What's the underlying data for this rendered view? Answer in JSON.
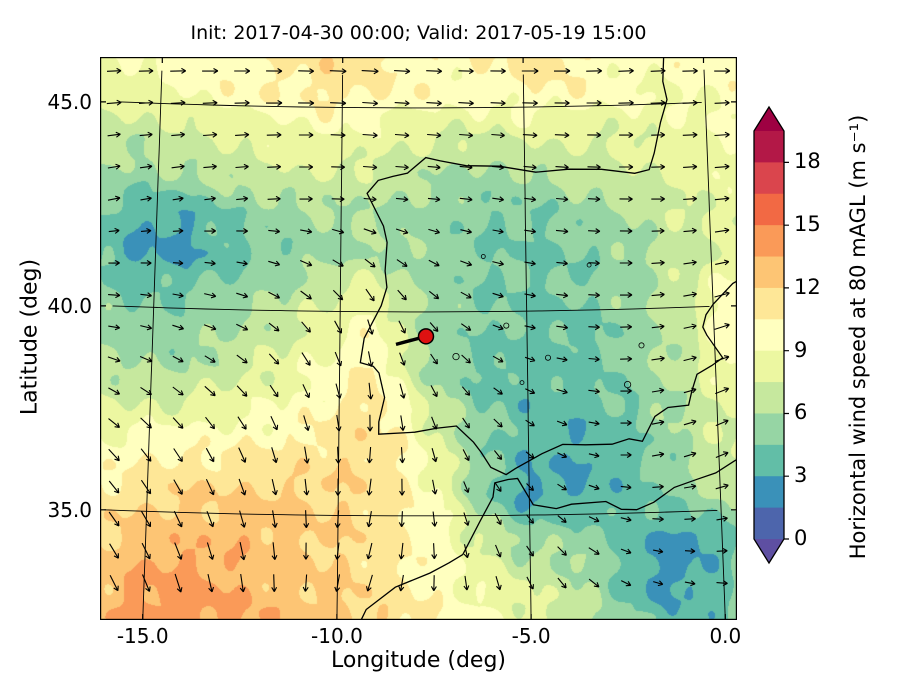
{
  "figure": {
    "title": "Init: 2017-04-30 00:00; Valid: 2017-05-19 15:00",
    "xlabel": "Longitude (deg)",
    "ylabel": "Latitude (deg)"
  },
  "axes": {
    "x_ticks": [
      {
        "v": -15,
        "label": "-15.0"
      },
      {
        "v": -10,
        "label": "-10.0"
      },
      {
        "v": -5,
        "label": "-5.0"
      },
      {
        "v": 0,
        "label": "0.0"
      }
    ],
    "y_ticks": [
      {
        "v": 45,
        "label": "45.0"
      },
      {
        "v": 40,
        "label": "40.0"
      },
      {
        "v": 35,
        "label": "35.0"
      }
    ]
  },
  "colorbar": {
    "label": "Horizontal wind speed at 80 mAGL (m s⁻¹)",
    "ticks": [
      "0",
      "3",
      "6",
      "9",
      "12",
      "15",
      "18"
    ],
    "tick_values": [
      0,
      3,
      6,
      9,
      12,
      15,
      18
    ],
    "vmin": 0,
    "vmax": 19.5,
    "extend": "both",
    "colormap": "Spectral_r",
    "colors": [
      "#5e4fa2",
      "#3288bd",
      "#66c2a5",
      "#abdda4",
      "#e6f598",
      "#ffffbf",
      "#fee08b",
      "#fdae61",
      "#f46d43",
      "#d53e4f",
      "#9e0142"
    ]
  },
  "chart_data": {
    "type": "heatmap",
    "title": "Init: 2017-04-30 00:00; Valid: 2017-05-19 15:00",
    "xlabel": "Longitude (deg)",
    "ylabel": "Latitude (deg)",
    "x_range": [
      -16.1,
      0.3
    ],
    "y_range": [
      32.3,
      46.1
    ],
    "level_step": 1.5,
    "gridline_meridians": [
      -15,
      -10,
      -5,
      0
    ],
    "gridline_parallels": [
      35,
      40,
      45
    ],
    "speed_grid_lons": [
      -16.2,
      -15.2,
      -14.2,
      -13.2,
      -12.2,
      -11.1,
      -10.1,
      -9.1,
      -8.1,
      -7.1,
      -6.0,
      -5.0,
      -4.0,
      -3.0,
      -2.0,
      -0.9,
      0.1,
      0.9
    ],
    "speed_grid_lats": [
      46.2,
      45.2,
      44.2,
      43.3,
      42.3,
      41.3,
      40.3,
      39.3,
      38.4,
      37.4,
      36.4,
      35.4,
      34.4,
      33.4,
      32.4
    ],
    "speed_grid": [
      [
        8.5,
        9.0,
        9.5,
        10.5,
        10.5,
        11.0,
        11.5,
        11.0,
        10.5,
        10.0,
        10.5,
        11.5,
        11.0,
        10.0,
        9.5,
        10.0,
        10.5,
        10.0
      ],
      [
        8.0,
        8.5,
        9.0,
        9.5,
        10.0,
        10.5,
        11.0,
        10.5,
        10.0,
        9.5,
        9.5,
        10.0,
        10.0,
        9.5,
        9.0,
        9.0,
        9.5,
        9.5
      ],
      [
        6.5,
        6.5,
        7.0,
        7.5,
        8.0,
        8.5,
        9.0,
        8.5,
        8.0,
        7.5,
        7.5,
        8.0,
        8.0,
        7.5,
        8.0,
        8.5,
        9.0,
        9.0
      ],
      [
        6.0,
        5.5,
        6.0,
        6.5,
        7.0,
        7.5,
        7.5,
        7.0,
        6.5,
        6.0,
        5.5,
        6.0,
        6.5,
        7.0,
        7.5,
        8.0,
        8.5,
        8.5
      ],
      [
        4.5,
        3.5,
        3.0,
        4.0,
        5.0,
        5.5,
        6.0,
        6.0,
        5.5,
        5.0,
        4.5,
        4.5,
        5.0,
        5.5,
        6.5,
        7.5,
        8.0,
        8.0
      ],
      [
        4.0,
        2.8,
        2.5,
        3.5,
        4.5,
        5.0,
        5.5,
        6.0,
        5.5,
        5.0,
        4.5,
        4.5,
        4.5,
        5.0,
        6.0,
        7.0,
        7.5,
        7.5
      ],
      [
        5.0,
        4.5,
        4.5,
        5.0,
        5.5,
        6.5,
        7.5,
        8.5,
        6.0,
        5.0,
        4.5,
        4.5,
        4.5,
        5.0,
        6.0,
        7.5,
        10.0,
        10.5
      ],
      [
        5.5,
        5.0,
        5.0,
        5.5,
        6.5,
        7.5,
        8.5,
        10.0,
        6.5,
        5.0,
        4.5,
        4.0,
        4.0,
        4.5,
        5.5,
        7.0,
        10.5,
        11.0
      ],
      [
        6.5,
        6.0,
        6.0,
        6.5,
        7.5,
        8.5,
        9.5,
        11.0,
        7.0,
        5.0,
        4.0,
        3.5,
        4.0,
        4.5,
        5.5,
        7.0,
        9.0,
        9.5
      ],
      [
        8.0,
        8.0,
        8.0,
        8.5,
        9.0,
        9.5,
        10.5,
        11.5,
        9.0,
        6.0,
        4.5,
        3.5,
        3.5,
        4.0,
        5.0,
        6.5,
        8.0,
        8.5
      ],
      [
        9.5,
        10.0,
        10.5,
        10.5,
        10.5,
        11.0,
        11.5,
        11.5,
        10.0,
        7.0,
        4.5,
        3.5,
        3.0,
        3.5,
        4.5,
        6.0,
        7.5,
        8.0
      ],
      [
        11.0,
        11.5,
        12.0,
        12.0,
        12.0,
        12.0,
        12.0,
        11.5,
        10.5,
        8.0,
        4.0,
        2.5,
        3.0,
        3.5,
        4.5,
        5.5,
        7.0,
        7.5
      ],
      [
        12.0,
        12.5,
        13.0,
        13.0,
        13.0,
        12.5,
        12.0,
        11.5,
        10.5,
        9.0,
        6.5,
        5.0,
        5.5,
        4.5,
        3.0,
        2.5,
        4.0,
        5.0
      ],
      [
        12.5,
        13.5,
        14.0,
        13.5,
        13.0,
        12.5,
        12.0,
        11.5,
        10.5,
        9.5,
        8.0,
        7.0,
        6.5,
        5.0,
        2.5,
        2.5,
        4.5,
        5.5
      ],
      [
        13.0,
        14.0,
        14.5,
        14.0,
        13.5,
        13.0,
        12.5,
        12.0,
        11.0,
        10.0,
        9.0,
        8.0,
        7.0,
        5.5,
        4.0,
        3.5,
        4.5,
        5.0
      ]
    ],
    "wind_dir_lons": [
      -16,
      -12.5,
      -9,
      -5.5,
      -2,
      0.5
    ],
    "wind_dir_lats": [
      46,
      42.5,
      39.5,
      36.5,
      32.5
    ],
    "wind_dir_deg": [
      [
        2,
        0,
        -3,
        0,
        3,
        0
      ],
      [
        12,
        6,
        -5,
        -8,
        0,
        8
      ],
      [
        -8,
        -25,
        -75,
        -15,
        5,
        22
      ],
      [
        -45,
        -65,
        -95,
        -45,
        10,
        28
      ],
      [
        -65,
        -85,
        -110,
        -75,
        -25,
        -5
      ]
    ],
    "marker": {
      "lon": -7.7,
      "lat": 39.4,
      "fill": "#dd1111",
      "edge": "#000000"
    },
    "coastlines": [
      [
        [
          -1.1,
          46.2
        ],
        [
          -1.15,
          45.55
        ],
        [
          -1.05,
          45.1
        ],
        [
          -1.25,
          44.55
        ],
        [
          -1.45,
          43.8
        ],
        [
          -1.6,
          43.4
        ],
        [
          -2.0,
          43.32
        ],
        [
          -2.9,
          43.44
        ],
        [
          -3.8,
          43.46
        ],
        [
          -4.7,
          43.4
        ],
        [
          -5.7,
          43.56
        ],
        [
          -6.6,
          43.58
        ],
        [
          -7.3,
          43.7
        ],
        [
          -7.7,
          43.78
        ],
        [
          -8.2,
          43.4
        ],
        [
          -8.6,
          43.32
        ],
        [
          -9.0,
          43.22
        ],
        [
          -9.3,
          42.9
        ],
        [
          -8.85,
          42.1
        ],
        [
          -8.75,
          41.7
        ],
        [
          -8.8,
          41.0
        ],
        [
          -8.75,
          40.6
        ],
        [
          -8.9,
          40.15
        ],
        [
          -9.35,
          39.35
        ],
        [
          -9.45,
          38.75
        ],
        [
          -9.1,
          38.66
        ],
        [
          -8.95,
          38.5
        ],
        [
          -8.8,
          37.9
        ],
        [
          -8.95,
          37.3
        ],
        [
          -8.95,
          37.0
        ],
        [
          -8.0,
          37.05
        ],
        [
          -7.4,
          37.15
        ],
        [
          -6.9,
          37.2
        ],
        [
          -6.45,
          36.8
        ],
        [
          -6.25,
          36.55
        ],
        [
          -6.0,
          36.18
        ],
        [
          -5.6,
          36.0
        ],
        [
          -5.35,
          36.15
        ],
        [
          -4.65,
          36.5
        ],
        [
          -4.1,
          36.72
        ],
        [
          -3.5,
          36.7
        ],
        [
          -2.8,
          36.7
        ],
        [
          -2.35,
          36.82
        ],
        [
          -2.0,
          36.75
        ],
        [
          -1.65,
          37.35
        ],
        [
          -1.3,
          37.56
        ],
        [
          -0.75,
          37.6
        ],
        [
          -0.65,
          37.95
        ],
        [
          -0.5,
          38.35
        ],
        [
          -0.1,
          38.55
        ],
        [
          0.2,
          38.73
        ],
        [
          -0.2,
          39.3
        ],
        [
          -0.3,
          39.5
        ],
        [
          -0.2,
          39.8
        ],
        [
          0.0,
          40.05
        ],
        [
          0.55,
          40.55
        ],
        [
          0.9,
          40.72
        ]
      ],
      [
        [
          -9.4,
          32.4
        ],
        [
          -9.25,
          32.7
        ],
        [
          -8.5,
          33.25
        ],
        [
          -7.6,
          33.6
        ],
        [
          -7.1,
          33.85
        ],
        [
          -6.75,
          34.05
        ],
        [
          -6.3,
          34.85
        ],
        [
          -5.95,
          35.45
        ],
        [
          -5.9,
          35.8
        ],
        [
          -5.55,
          35.88
        ],
        [
          -5.3,
          35.9
        ],
        [
          -4.9,
          35.25
        ],
        [
          -4.3,
          35.15
        ],
        [
          -3.9,
          35.25
        ],
        [
          -3.0,
          35.3
        ],
        [
          -2.6,
          35.1
        ],
        [
          -2.2,
          35.08
        ],
        [
          -1.75,
          35.25
        ],
        [
          -1.2,
          35.6
        ],
        [
          -0.6,
          35.78
        ],
        [
          -0.1,
          35.92
        ],
        [
          0.4,
          36.2
        ],
        [
          0.9,
          36.45
        ]
      ]
    ],
    "lakes": [
      [
        -6.15,
        41.35
      ],
      [
        -5.55,
        39.65
      ],
      [
        -6.9,
        38.9
      ],
      [
        -5.15,
        38.25
      ],
      [
        -4.45,
        38.85
      ],
      [
        -2.35,
        38.15
      ],
      [
        -3.3,
        41.1
      ],
      [
        -1.95,
        39.1
      ]
    ]
  }
}
